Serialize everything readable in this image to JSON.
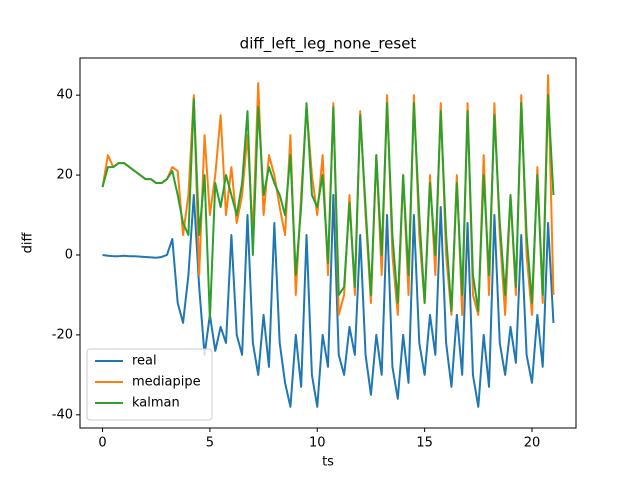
{
  "chart_data": {
    "type": "line",
    "title": "diff_left_leg_none_reset",
    "x_label": "ts",
    "y_label": "diff",
    "x": [
      0,
      0.25,
      0.5,
      0.75,
      1,
      1.25,
      1.5,
      1.75,
      2,
      2.25,
      2.5,
      2.75,
      3,
      3.25,
      3.5,
      3.75,
      4,
      4.25,
      4.5,
      4.75,
      5,
      5.25,
      5.5,
      5.75,
      6,
      6.25,
      6.5,
      6.75,
      7,
      7.25,
      7.5,
      7.75,
      8,
      8.25,
      8.5,
      8.75,
      9,
      9.25,
      9.5,
      9.75,
      10,
      10.25,
      10.5,
      10.75,
      11,
      11.25,
      11.5,
      11.75,
      12,
      12.25,
      12.5,
      12.75,
      13,
      13.25,
      13.5,
      13.75,
      14,
      14.25,
      14.5,
      14.75,
      15,
      15.25,
      15.5,
      15.75,
      16,
      16.25,
      16.5,
      16.75,
      17,
      17.25,
      17.5,
      17.75,
      18,
      18.25,
      18.5,
      18.75,
      19,
      19.25,
      19.5,
      19.75,
      20,
      20.25,
      20.5,
      20.75,
      21
    ],
    "series": [
      {
        "name": "real",
        "color": "#1f77b4",
        "values": [
          0,
          -0.2,
          -0.3,
          -0.3,
          -0.2,
          -0.3,
          -0.3,
          -0.4,
          -0.5,
          -0.6,
          -0.7,
          -0.5,
          0,
          4,
          -12,
          -17,
          -5,
          15,
          -8,
          -25,
          -15,
          -24,
          -18,
          -22,
          5,
          -20,
          -25,
          10,
          -22,
          -30,
          -15,
          -28,
          8,
          -22,
          -32,
          -38,
          -20,
          -33,
          5,
          -30,
          -38,
          -20,
          -28,
          15,
          -25,
          -30,
          -18,
          -25,
          5,
          -25,
          -35,
          -20,
          -30,
          10,
          -28,
          -36,
          -20,
          -32,
          10,
          -22,
          -30,
          -15,
          -25,
          12,
          -22,
          -33,
          -15,
          -30,
          8,
          -30,
          -38,
          -20,
          -33,
          10,
          -22,
          -30,
          -18,
          -27,
          5,
          -25,
          -32,
          -15,
          -28,
          8,
          -17
        ]
      },
      {
        "name": "mediapipe",
        "color": "#ff7f0e",
        "values": [
          17,
          25,
          22,
          23,
          23,
          22,
          21,
          20,
          19,
          19,
          18,
          18,
          19,
          22,
          21,
          5,
          15,
          40,
          -5,
          30,
          10,
          20,
          35,
          10,
          22,
          8,
          15,
          30,
          5,
          43,
          10,
          25,
          20,
          12,
          5,
          30,
          -10,
          15,
          37,
          20,
          10,
          25,
          -5,
          38,
          -15,
          -10,
          15,
          -10,
          36,
          10,
          -12,
          25,
          -5,
          40,
          0,
          -15,
          20,
          -10,
          40,
          5,
          -12,
          20,
          -5,
          38,
          0,
          -15,
          20,
          -15,
          38,
          -10,
          -15,
          25,
          -10,
          38,
          5,
          -15,
          15,
          -10,
          40,
          0,
          -15,
          22,
          -12,
          45,
          -10
        ]
      },
      {
        "name": "kalman",
        "color": "#2ca02c",
        "values": [
          17,
          22,
          22,
          23,
          23,
          22,
          21,
          20,
          19,
          19,
          18,
          18,
          19,
          21,
          15,
          8,
          5,
          39,
          5,
          20,
          -16,
          18,
          12,
          20,
          15,
          10,
          18,
          36,
          0,
          37,
          15,
          22,
          18,
          15,
          10,
          25,
          -5,
          12,
          38,
          15,
          12,
          20,
          -2,
          37,
          -10,
          -8,
          13,
          -8,
          35,
          12,
          -10,
          25,
          0,
          38,
          5,
          -12,
          20,
          -5,
          38,
          10,
          -12,
          18,
          0,
          36,
          5,
          -14,
          18,
          -10,
          36,
          -5,
          -14,
          20,
          -5,
          35,
          8,
          -10,
          15,
          -8,
          38,
          5,
          -12,
          20,
          -10,
          40,
          15
        ]
      }
    ],
    "xlim": [
      -1.05,
      22.05
    ],
    "ylim": [
      -43.3,
      49.3
    ],
    "xticks": [
      0,
      5,
      10,
      15,
      20
    ],
    "yticks": [
      -40,
      -20,
      0,
      20,
      40
    ],
    "grid": false,
    "legend": "lower left"
  }
}
